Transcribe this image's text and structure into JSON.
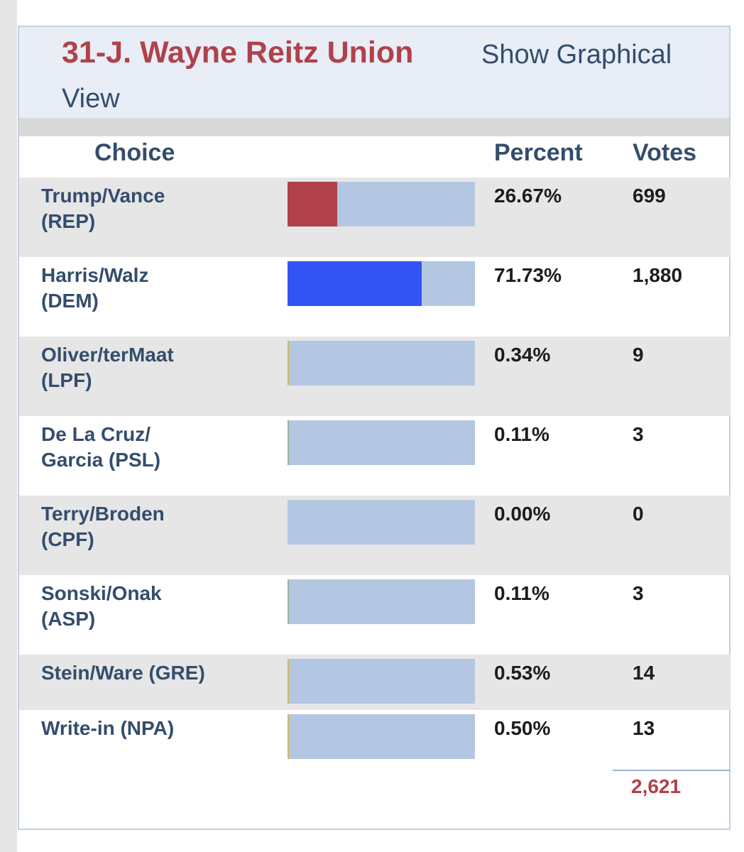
{
  "header": {
    "title": "31-J. Wayne Reitz Union",
    "graph_link_line1": "Show Graphical",
    "graph_link_line2": "View"
  },
  "columns": {
    "choice": "Choice",
    "percent": "Percent",
    "votes": "Votes"
  },
  "rows": [
    {
      "line1": "Trump/Vance",
      "line2": "(REP)",
      "percent": "26.67%",
      "votes": "699",
      "share": 0.2667,
      "color": "#b0414a"
    },
    {
      "line1": "Harris/Walz",
      "line2": "(DEM)",
      "percent": "71.73%",
      "votes": "1,880",
      "share": 0.7173,
      "color": "#3354f5"
    },
    {
      "line1": "Oliver/terMaat",
      "line2": "(LPF)",
      "percent": "0.34%",
      "votes": "9",
      "share": 0.0034,
      "color": "#c9b86a"
    },
    {
      "line1": "De La Cruz/",
      "line2": "Garcia (PSL)",
      "percent": "0.11%",
      "votes": "3",
      "share": 0.0011,
      "color": "#9bb0a0"
    },
    {
      "line1": "Terry/Broden",
      "line2": "(CPF)",
      "percent": "0.00%",
      "votes": "0",
      "share": 0.0,
      "color": "#9bb0a0"
    },
    {
      "line1": "Sonski/Onak",
      "line2": "(ASP)",
      "percent": "0.11%",
      "votes": "3",
      "share": 0.0011,
      "color": "#9bb0a0"
    },
    {
      "line1": "Stein/Ware (GRE)",
      "line2": "",
      "percent": "0.53%",
      "votes": "14",
      "share": 0.0053,
      "color": "#c9b86a"
    },
    {
      "line1": "Write-in (NPA)",
      "line2": "",
      "percent": "0.50%",
      "votes": "13",
      "share": 0.005,
      "color": "#c9b86a"
    }
  ],
  "total_votes": "2,621"
}
